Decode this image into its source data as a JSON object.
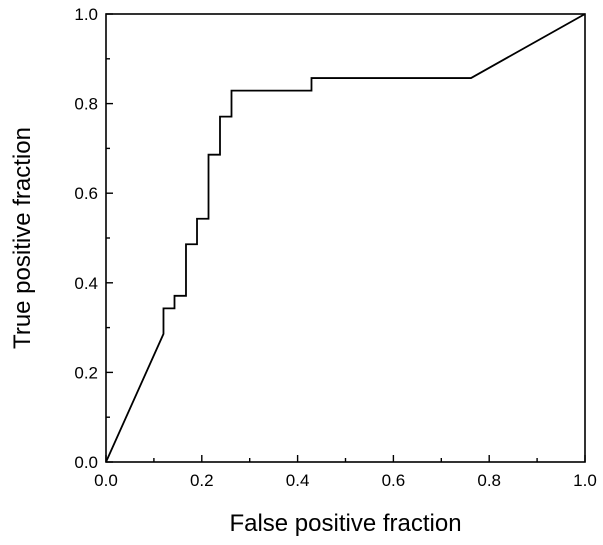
{
  "chart_data": {
    "type": "line",
    "xlabel": "False positive fraction",
    "ylabel": "True positive fraction",
    "xlim": [
      0.0,
      1.0
    ],
    "ylim": [
      0.0,
      1.0
    ],
    "xticks": [
      0.0,
      0.2,
      0.4,
      0.6,
      0.8,
      1.0
    ],
    "yticks": [
      0.0,
      0.2,
      0.4,
      0.6,
      0.8,
      1.0
    ],
    "xtick_labels": [
      "0.0",
      "0.2",
      "0.4",
      "0.6",
      "0.8",
      "1.0"
    ],
    "ytick_labels": [
      "0.0",
      "0.2",
      "0.4",
      "0.6",
      "0.8",
      "1.0"
    ],
    "grid": false,
    "series": [
      {
        "x": [
          0.0,
          0.12,
          0.12,
          0.143,
          0.143,
          0.167,
          0.167,
          0.19,
          0.19,
          0.214,
          0.214,
          0.238,
          0.238,
          0.262,
          0.262,
          0.429,
          0.429,
          0.762,
          1.0
        ],
        "y": [
          0.0,
          0.286,
          0.343,
          0.343,
          0.371,
          0.371,
          0.486,
          0.486,
          0.543,
          0.543,
          0.686,
          0.686,
          0.771,
          0.771,
          0.829,
          0.829,
          0.857,
          0.857,
          1.0
        ]
      }
    ],
    "line_color": "#000000"
  }
}
